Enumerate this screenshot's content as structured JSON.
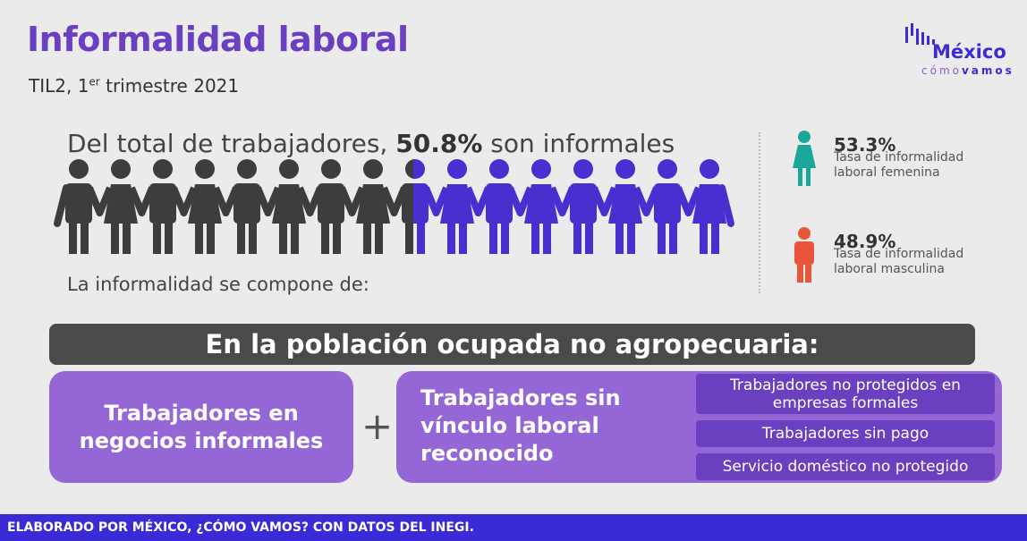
{
  "header": {
    "title": "Informalidad laboral",
    "subtitle": [
      "TIL2, 1",
      "er",
      " trimestre 2021"
    ]
  },
  "logo": {
    "word": "México",
    "sub": [
      "cómo",
      "vamos"
    ]
  },
  "headline": [
    "Del total de trabajadores, ",
    "50.8%",
    " son informales"
  ],
  "compone": "La informalidad se compone de:",
  "stats": [
    {
      "value": "53.3%",
      "lines": [
        "Tasa de informalidad",
        "laboral femenina"
      ]
    },
    {
      "value": "48.9%",
      "lines": [
        "Tasa de informalidad",
        "laboral masculina"
      ]
    }
  ],
  "banner": "En la población ocupada no agropecuaria:",
  "box1": [
    "Trabajadores en",
    "negocios informales"
  ],
  "plus": "+",
  "box2": {
    "lines": [
      "Trabajadores sin",
      "vínculo laboral",
      "reconocido"
    ],
    "items": [
      [
        "Trabajadores no protegidos en",
        "empresas formales"
      ],
      [
        "Trabajadores sin pago"
      ],
      [
        "Servicio doméstico no protegido"
      ]
    ]
  },
  "footer": "ELABORADO POR MÉXICO, ¿CÓMO VAMOS? CON DATOS DEL INEGI."
}
